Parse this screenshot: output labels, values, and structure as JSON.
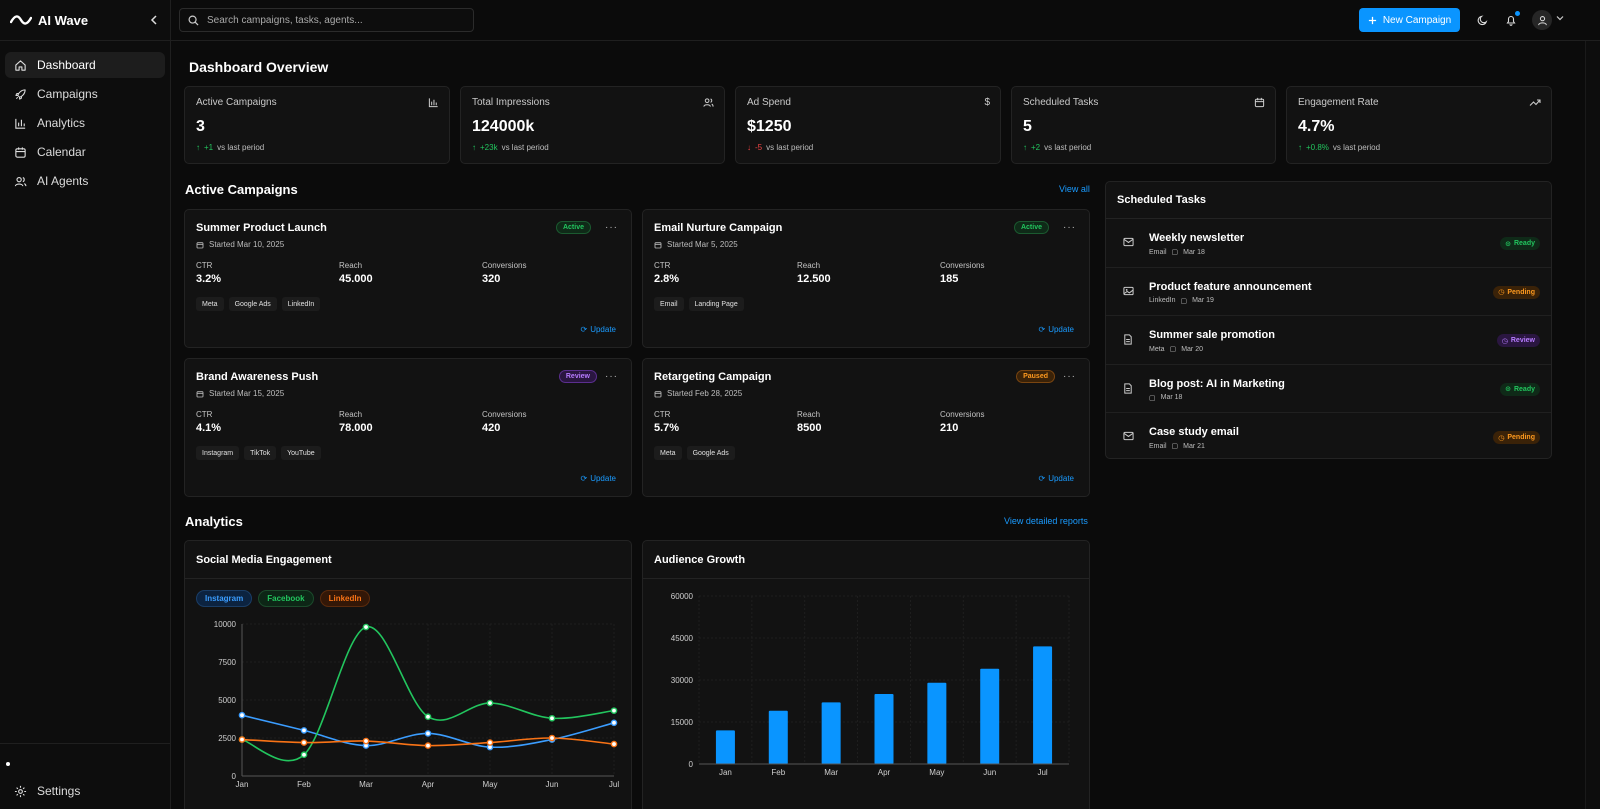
{
  "app": {
    "name": "AI Wave"
  },
  "sidebar": {
    "items": [
      {
        "label": "Dashboard",
        "icon": "home-icon",
        "active": true
      },
      {
        "label": "Campaigns",
        "icon": "rocket-icon"
      },
      {
        "label": "Analytics",
        "icon": "bar-chart-icon"
      },
      {
        "label": "Calendar",
        "icon": "calendar-icon"
      },
      {
        "label": "AI Agents",
        "icon": "users-icon"
      }
    ],
    "settings_label": "Settings"
  },
  "topbar": {
    "search_placeholder": "Search campaigns, tasks, agents...",
    "new_campaign_label": "New Campaign",
    "accent": "#0a95ff"
  },
  "overview": {
    "title": "Dashboard Overview",
    "stats": [
      {
        "label": "Active Campaigns",
        "value": "3",
        "delta": "+1",
        "delta_suffix": "vs last period",
        "trend": "up",
        "icon": "bar-chart-icon"
      },
      {
        "label": "Total Impressions",
        "value": "124000k",
        "delta": "+23k",
        "delta_suffix": "vs last period",
        "trend": "up",
        "icon": "users-icon"
      },
      {
        "label": "Ad Spend",
        "value": "$1250",
        "delta": "-5",
        "delta_suffix": "vs last period",
        "trend": "down",
        "icon": "dollar-icon"
      },
      {
        "label": "Scheduled Tasks",
        "value": "5",
        "delta": "+2",
        "delta_suffix": "vs last period",
        "trend": "up",
        "icon": "calendar-icon"
      },
      {
        "label": "Engagement Rate",
        "value": "4.7%",
        "delta": "+0.8%",
        "delta_suffix": "vs last period",
        "trend": "up",
        "icon": "trending-up-icon"
      }
    ]
  },
  "campaigns": {
    "title": "Active Campaigns",
    "view_all": "View all",
    "update_label": "Update",
    "metric_labels": {
      "ctr": "CTR",
      "reach": "Reach",
      "conversions": "Conversions"
    },
    "items": [
      {
        "name": "Summer Product Launch",
        "started": "Started Mar 10, 2025",
        "status": "Active",
        "ctr": "3.2%",
        "reach": "45.000",
        "conversions": "320",
        "tags": [
          "Meta",
          "Google Ads",
          "LinkedIn"
        ]
      },
      {
        "name": "Email Nurture Campaign",
        "started": "Started Mar 5, 2025",
        "status": "Active",
        "ctr": "2.8%",
        "reach": "12.500",
        "conversions": "185",
        "tags": [
          "Email",
          "Landing Page"
        ]
      },
      {
        "name": "Brand Awareness Push",
        "started": "Started Mar 15, 2025",
        "status": "Review",
        "ctr": "4.1%",
        "reach": "78.000",
        "conversions": "420",
        "tags": [
          "Instagram",
          "TikTok",
          "YouTube"
        ]
      },
      {
        "name": "Retargeting Campaign",
        "started": "Started Feb 28, 2025",
        "status": "Paused",
        "ctr": "5.7%",
        "reach": "8500",
        "conversions": "210",
        "tags": [
          "Meta",
          "Google Ads"
        ]
      }
    ]
  },
  "tasks": {
    "title": "Scheduled Tasks",
    "items": [
      {
        "title": "Weekly newsletter",
        "channel": "Email",
        "date": "Mar 18",
        "status": "Ready",
        "icon": "mail-icon"
      },
      {
        "title": "Product feature announcement",
        "channel": "LinkedIn",
        "date": "Mar 19",
        "status": "Pending",
        "icon": "image-icon"
      },
      {
        "title": "Summer sale promotion",
        "channel": "Meta",
        "date": "Mar 20",
        "status": "Review",
        "icon": "document-icon"
      },
      {
        "title": "Blog post: AI in Marketing",
        "channel": "",
        "date": "Mar 18",
        "status": "Ready",
        "icon": "document-icon"
      },
      {
        "title": "Case study email",
        "channel": "Email",
        "date": "Mar 21",
        "status": "Pending",
        "icon": "mail-icon"
      }
    ]
  },
  "analytics": {
    "title": "Analytics",
    "detailed_link": "View detailed reports",
    "engagement_title": "Social Media Engagement",
    "growth_title": "Audience Growth"
  },
  "chart_data": [
    {
      "type": "line",
      "title": "Social Media Engagement",
      "categories": [
        "Jan",
        "Feb",
        "Mar",
        "Apr",
        "May",
        "Jun",
        "Jul"
      ],
      "ylim": [
        0,
        10000
      ],
      "yticks": [
        0,
        2500,
        5000,
        7500,
        10000
      ],
      "legend": "top-left",
      "series": [
        {
          "name": "Instagram",
          "color": "#3b9dff",
          "values": [
            4000,
            3000,
            2000,
            2800,
            1900,
            2400,
            3500
          ]
        },
        {
          "name": "Facebook",
          "color": "#22c55e",
          "values": [
            2400,
            1400,
            9800,
            3900,
            4800,
            3800,
            4300
          ]
        },
        {
          "name": "LinkedIn",
          "color": "#f97316",
          "values": [
            2400,
            2200,
            2300,
            2000,
            2200,
            2500,
            2100
          ]
        }
      ]
    },
    {
      "type": "bar",
      "title": "Audience Growth",
      "categories": [
        "Jan",
        "Feb",
        "Mar",
        "Apr",
        "May",
        "Jun",
        "Jul"
      ],
      "ylim": [
        0,
        60000
      ],
      "yticks": [
        0,
        15000,
        30000,
        45000,
        60000
      ],
      "color": "#0a95ff",
      "values": [
        12000,
        19000,
        22000,
        25000,
        29000,
        34000,
        42000
      ]
    }
  ]
}
